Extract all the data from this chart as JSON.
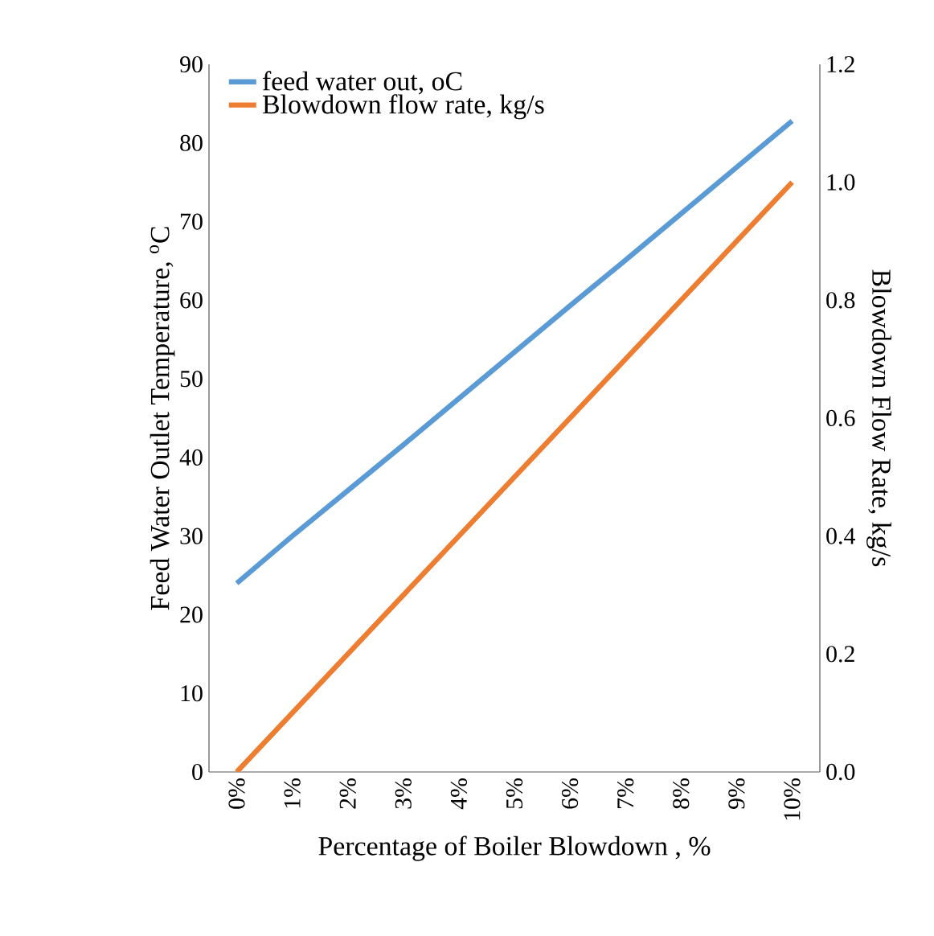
{
  "chart_data": {
    "type": "line",
    "xlabel": "Percentage of Boiler Blowdown , %",
    "ylabel": "Feed Water Outlet Temperature, $^{o}$C",
    "y2label": "Blowdown Flow Rate, kg/s",
    "categories": [
      "0%",
      "1%",
      "2%",
      "3%",
      "4%",
      "5%",
      "6%",
      "7%",
      "8%",
      "9%",
      "10%"
    ],
    "series": [
      {
        "name": "feed water out, oC",
        "color": "#5b9bd5",
        "values": [
          24,
          30,
          35.8,
          41.6,
          47.5,
          53.4,
          59.3,
          65.1,
          71,
          76.9,
          82.8
        ]
      },
      {
        "name": "Blowdown flow rate, kg/s",
        "color": "#ed7d31",
        "axis": "y2",
        "values": [
          0,
          0.1,
          0.2,
          0.3,
          0.4,
          0.5,
          0.6,
          0.7,
          0.8,
          0.9,
          1.0
        ]
      }
    ],
    "ylim": [
      0,
      90
    ],
    "yticks": [
      0,
      10,
      20,
      30,
      40,
      50,
      60,
      70,
      80,
      90
    ],
    "y2lim": [
      0,
      1.2
    ],
    "y2ticks": [
      {
        "value": 0,
        "label": "0.0"
      },
      {
        "value": 0.2,
        "label": "0.2"
      },
      {
        "value": 0.4,
        "label": "0.4"
      },
      {
        "value": 0.6,
        "label": "0.6"
      },
      {
        "value": 0.8,
        "label": "0.8"
      },
      {
        "value": 1.0,
        "label": "1.0"
      },
      {
        "value": 1.2,
        "label": "1.2"
      }
    ],
    "grid": false,
    "legend": "top left",
    "marker": "none",
    "line_style": "solid"
  }
}
